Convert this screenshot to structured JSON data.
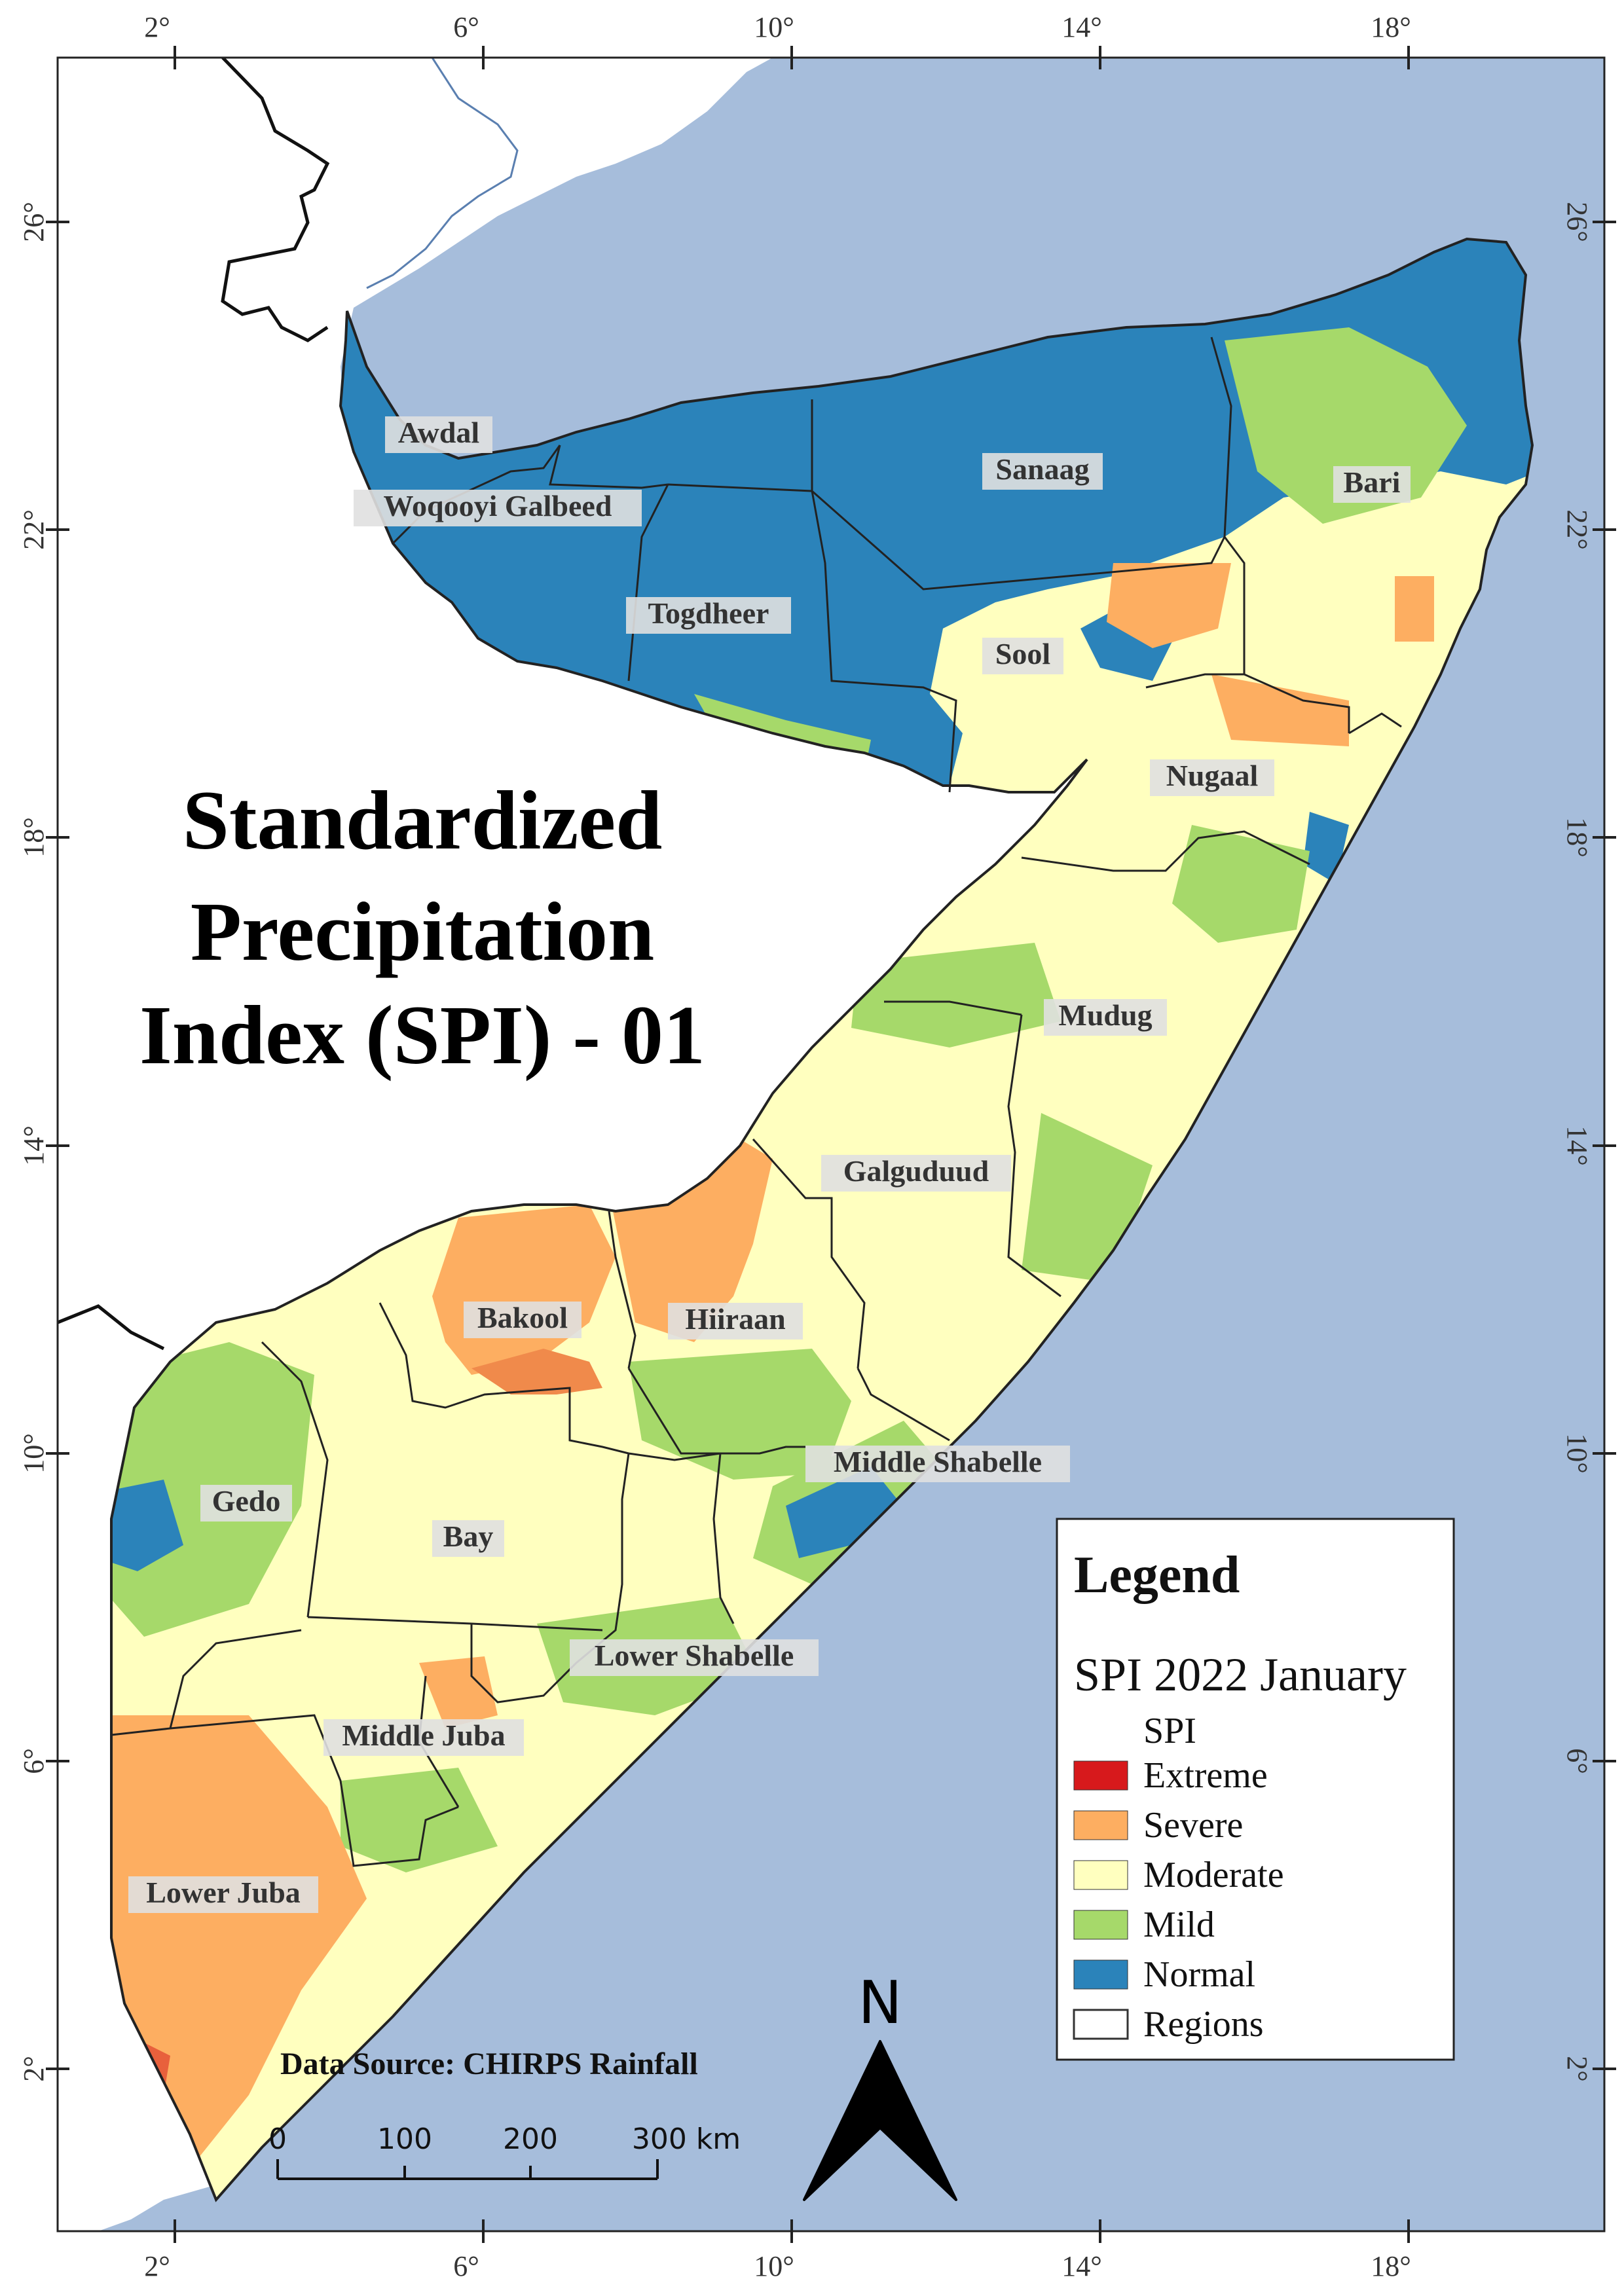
{
  "title": {
    "lines": [
      "Standardized",
      "Precipitation",
      "Index (SPI) - 01"
    ]
  },
  "ticks": {
    "longitude": [
      "2°",
      "6°",
      "10°",
      "14°",
      "18°"
    ],
    "latitude": [
      "26°",
      "22°",
      "18°",
      "14°",
      "10°",
      "6°",
      "2°"
    ]
  },
  "regions": [
    {
      "name": "Awdal"
    },
    {
      "name": "Woqooyi Galbeed"
    },
    {
      "name": "Togdheer"
    },
    {
      "name": "Sanaag"
    },
    {
      "name": "Sool"
    },
    {
      "name": "Bari"
    },
    {
      "name": "Nugaal"
    },
    {
      "name": "Mudug"
    },
    {
      "name": "Galguduud"
    },
    {
      "name": "Hiiraan"
    },
    {
      "name": "Bakool"
    },
    {
      "name": "Middle Shabelle"
    },
    {
      "name": "Gedo"
    },
    {
      "name": "Bay"
    },
    {
      "name": "Lower Shabelle"
    },
    {
      "name": "Middle Juba"
    },
    {
      "name": "Lower Juba"
    }
  ],
  "legend": {
    "heading": "Legend",
    "layer": "SPI 2022 January",
    "field": "SPI",
    "classes": [
      {
        "label": "Extreme",
        "color": "#d7191c"
      },
      {
        "label": "Severe",
        "color": "#fdae61"
      },
      {
        "label": "Moderate",
        "color": "#ffffbf"
      },
      {
        "label": "Mild",
        "color": "#a6d96a"
      },
      {
        "label": "Normal",
        "color": "#2b83ba"
      },
      {
        "label": "Regions",
        "color": "none"
      }
    ]
  },
  "source": "Data Source: CHIRPS Rainfall",
  "scalebar": {
    "labels": [
      "0",
      "100",
      "200",
      "300 km"
    ]
  },
  "north": {
    "label": "N"
  },
  "colors": {
    "sea": "#a6bddb",
    "land": "#ffffff",
    "normal": "#2b83ba",
    "mild": "#a6d96a",
    "moderate": "#ffffbf",
    "severe": "#fdae61",
    "extreme": "#d7191c",
    "border": "#222222"
  }
}
